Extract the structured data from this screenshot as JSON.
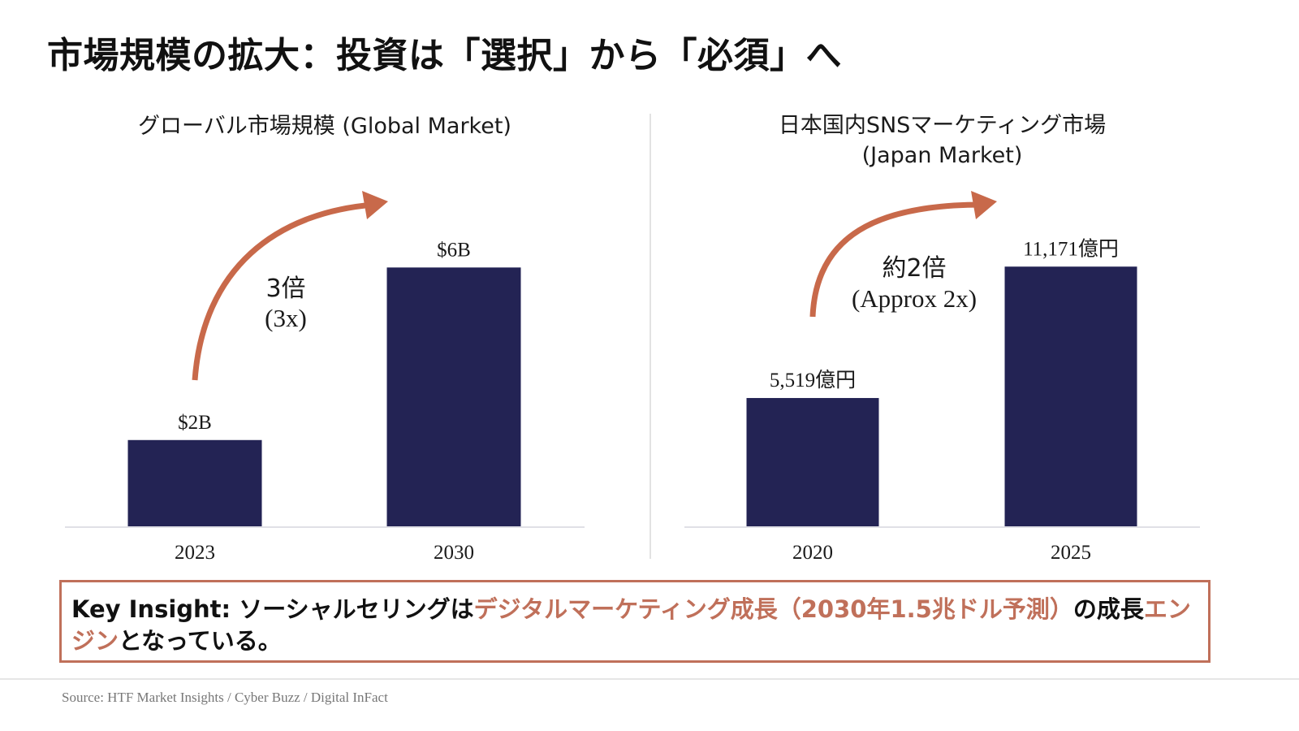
{
  "title": "市場規模の拡大：投資は「選択」から「必須」へ",
  "colors": {
    "bar": "#232354",
    "accent": "#c8694a",
    "axis": "#e0e0e6",
    "text": "#1a1a1a"
  },
  "chart_data": [
    {
      "type": "bar",
      "title": "グローバル市場規模 (Global Market)",
      "categories": [
        "2023",
        "2030"
      ],
      "values": [
        2,
        6
      ],
      "value_labels": [
        "$2B",
        "$6B"
      ],
      "unit": "USD billions",
      "ylim": [
        0,
        9
      ],
      "grid": false,
      "annotation": {
        "line1": "3倍",
        "line2": "(3x)",
        "from": "2023",
        "to": "2030"
      }
    },
    {
      "type": "bar",
      "title": "日本国内SNSマーケティング市場",
      "subtitle": "(Japan Market)",
      "categories": [
        "2020",
        "2025"
      ],
      "values": [
        5519,
        11171
      ],
      "value_labels": [
        "5,519億円",
        "11,171億円"
      ],
      "unit": "億円",
      "ylim": [
        0,
        16700
      ],
      "grid": false,
      "annotation": {
        "line1": "約2倍",
        "line2": "(Approx 2x)",
        "from": "2020",
        "to": "2025"
      }
    }
  ],
  "insight": {
    "label": "Key Insight: ",
    "part1": "ソーシャルセリングは",
    "highlight1": "デジタルマーケティング成長（2030年1.5兆ドル予測）",
    "part2": "の成長",
    "highlight2": "エンジン",
    "part3": "となっている。"
  },
  "source": "Source: HTF Market Insights / Cyber Buzz / Digital InFact"
}
